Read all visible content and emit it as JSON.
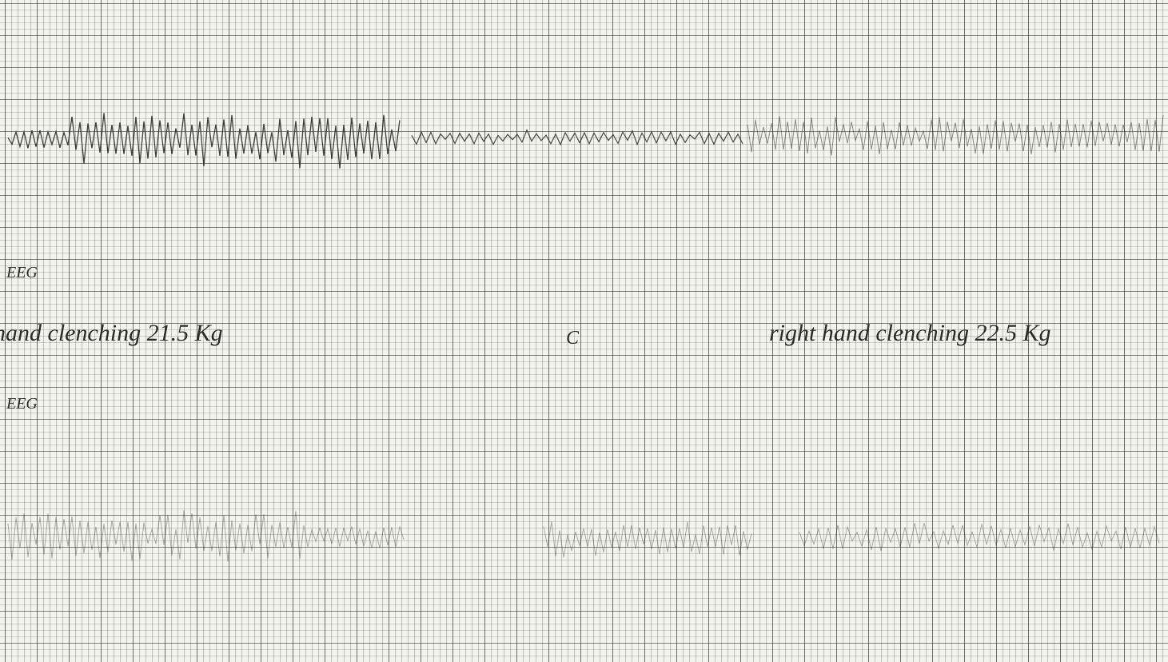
{
  "labels": {
    "channel_1": "EEG",
    "annotation_left": "hand clenching 21.5 Kg",
    "marker": "C",
    "annotation_right": "right hand clenching 22.5 Kg",
    "channel_2": "EEG"
  }
}
